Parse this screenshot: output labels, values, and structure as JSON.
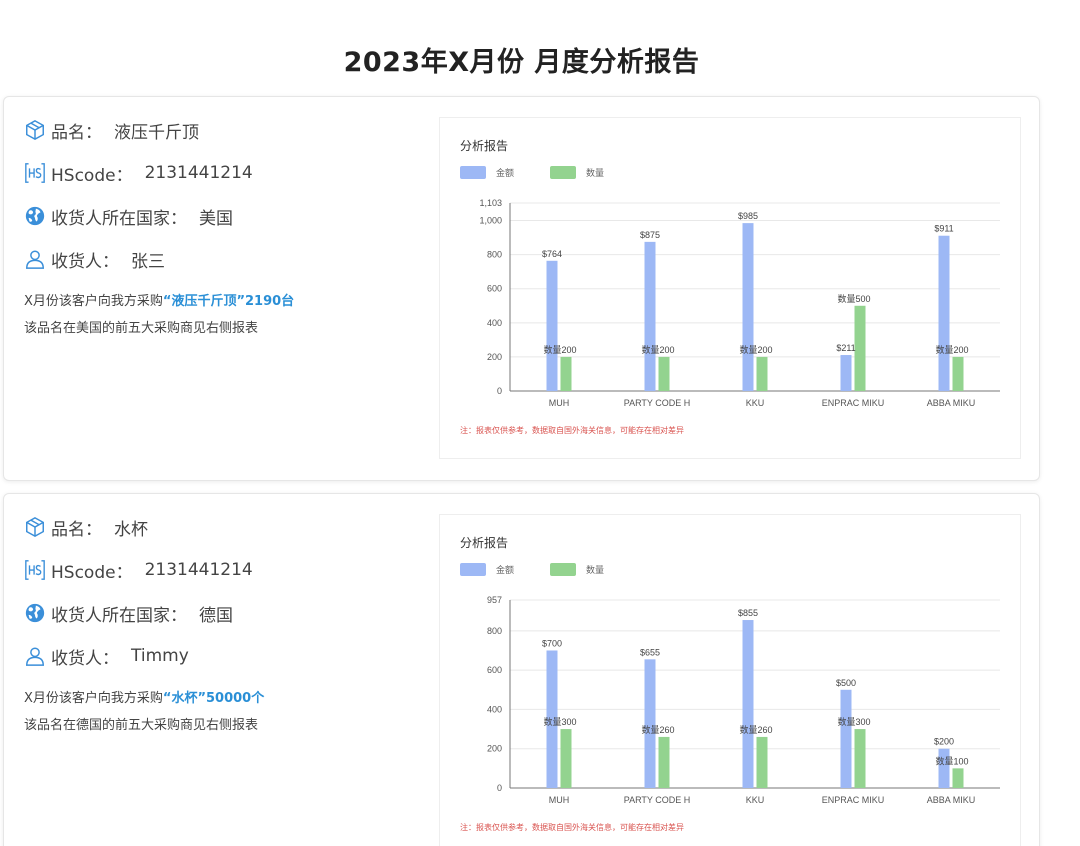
{
  "page": {
    "title": "2023年X月份  月度分析报告"
  },
  "colors": {
    "amount": "#9db8f5",
    "quantity": "#93d38f",
    "note": "#d9534f",
    "accent": "#2a8fd6"
  },
  "icons": {
    "product": "cube-icon",
    "hscode": "hs-badge-icon",
    "country": "globe-icon",
    "receiver": "user-icon"
  },
  "reports": [
    {
      "product_label": "品名：",
      "product_value": "液压千斤顶",
      "hscode_label": "HScode：",
      "hscode_value": "2131441214",
      "country_label": "收货人所在国家：",
      "country_value": "美国",
      "receiver_label": "收货人：",
      "receiver_value": "张三",
      "desc1_prefix": "X月份该客户向我方采购",
      "desc1_highlight": "“液压千斤顶”2190台",
      "desc2": "该品名在美国的前五大采购商见右侧报表"
    },
    {
      "product_label": "品名：",
      "product_value": "水杯",
      "hscode_label": "HScode：",
      "hscode_value": "2131441214",
      "country_label": "收货人所在国家：",
      "country_value": "德国",
      "receiver_label": "收货人：",
      "receiver_value": "Timmy",
      "desc1_prefix": "X月份该客户向我方采购",
      "desc1_highlight": "“水杯”50000个",
      "desc2": "该品名在德国的前五大采购商见右侧报表"
    }
  ],
  "chart_data": [
    {
      "type": "bar",
      "title": "分析报告",
      "categories": [
        "MUH",
        "PARTY CODE H",
        "KKU",
        "ENPRAC MIKU",
        "ABBA MIKU"
      ],
      "series": [
        {
          "name": "金额",
          "values": [
            764,
            875,
            985,
            211,
            911
          ],
          "labels": [
            "$764",
            "$875",
            "$985",
            "$211",
            "$911"
          ]
        },
        {
          "name": "数量",
          "values": [
            200,
            200,
            200,
            500,
            200
          ],
          "labels": [
            "数量200",
            "数量200",
            "数量200",
            "数量500",
            "数量200"
          ]
        }
      ],
      "ylim": [
        0,
        1103
      ],
      "yticks": [
        0,
        200,
        400,
        600,
        800,
        1000,
        1103
      ],
      "ytick_labels": [
        "0",
        "200",
        "400",
        "600",
        "800",
        "1,000",
        "1,103"
      ],
      "legend": "top-left",
      "grid": true,
      "note": "注：报表仅供参考，数据取自国外海关信息，可能存在相对差异"
    },
    {
      "type": "bar",
      "title": "分析报告",
      "categories": [
        "MUH",
        "PARTY CODE H",
        "KKU",
        "ENPRAC MIKU",
        "ABBA MIKU"
      ],
      "series": [
        {
          "name": "金额",
          "values": [
            700,
            655,
            855,
            500,
            200
          ],
          "labels": [
            "$700",
            "$655",
            "$855",
            "$500",
            "$200"
          ]
        },
        {
          "name": "数量",
          "values": [
            300,
            260,
            260,
            300,
            100
          ],
          "labels": [
            "数量300",
            "数量260",
            "数量260",
            "数量300",
            "数量100"
          ]
        }
      ],
      "ylim": [
        0,
        957
      ],
      "yticks": [
        0,
        200,
        400,
        600,
        800,
        957
      ],
      "ytick_labels": [
        "0",
        "200",
        "400",
        "600",
        "800",
        "957"
      ],
      "legend": "top-left",
      "grid": true,
      "note": "注：报表仅供参考，数据取自国外海关信息，可能存在相对差异"
    }
  ]
}
